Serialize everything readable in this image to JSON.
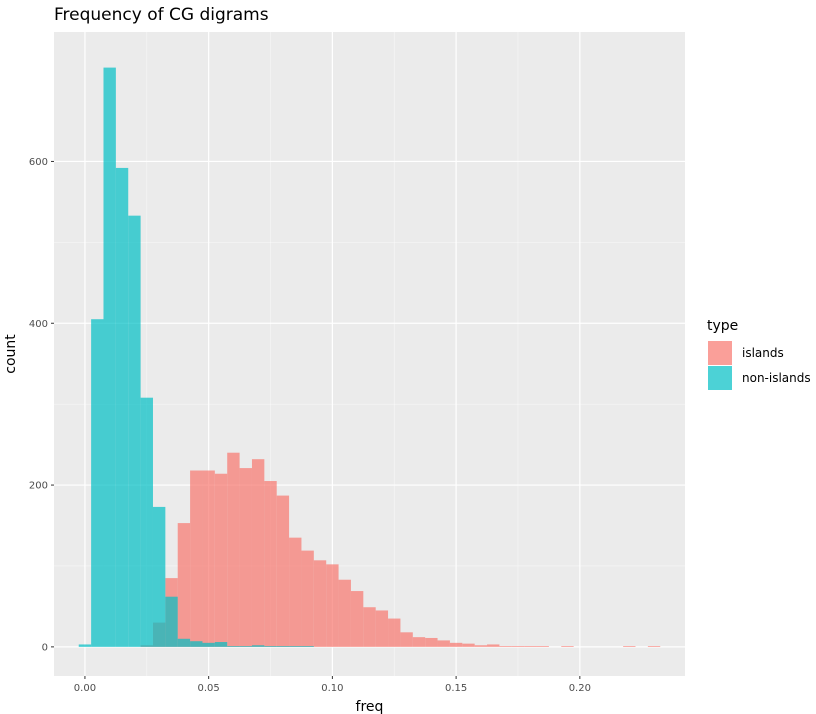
{
  "chart_data": {
    "type": "bar",
    "subtype": "overlapping-histogram",
    "title": "Frequency of CG digrams",
    "xlabel": "freq",
    "ylabel": "count",
    "xlim": [
      -0.0125,
      0.2425
    ],
    "ylim": [
      -36,
      760
    ],
    "x_ticks": [
      0.0,
      0.05,
      0.1,
      0.15,
      0.2
    ],
    "x_tick_labels": [
      "0.00",
      "0.05",
      "0.10",
      "0.15",
      "0.20"
    ],
    "y_ticks": [
      0,
      200,
      400,
      600
    ],
    "y_tick_labels": [
      "0",
      "200",
      "400",
      "600"
    ],
    "grid": true,
    "bin_width": 0.005,
    "legend": {
      "title": "type",
      "position": "right"
    },
    "colors": {
      "panel": "#ebebeb",
      "grid_major": "#ffffff",
      "islands": "#f8766d",
      "non_islands": "#00bfc4"
    },
    "series": [
      {
        "name": "islands",
        "color": "#f8766d",
        "bin_centers": [
          0.025,
          0.03,
          0.035,
          0.04,
          0.045,
          0.05,
          0.055,
          0.06,
          0.065,
          0.07,
          0.075,
          0.08,
          0.085,
          0.09,
          0.095,
          0.1,
          0.105,
          0.11,
          0.115,
          0.12,
          0.125,
          0.13,
          0.135,
          0.14,
          0.145,
          0.15,
          0.155,
          0.16,
          0.165,
          0.17,
          0.175,
          0.18,
          0.185,
          0.195,
          0.22,
          0.23
        ],
        "values": [
          2,
          30,
          85,
          153,
          218,
          218,
          214,
          240,
          221,
          232,
          205,
          187,
          135,
          119,
          107,
          102,
          83,
          69,
          49,
          45,
          35,
          18,
          12,
          11,
          8,
          5,
          4,
          2,
          3,
          1,
          1,
          1,
          1,
          1,
          1,
          1
        ]
      },
      {
        "name": "non-islands",
        "color": "#00bfc4",
        "bin_centers": [
          0.0,
          0.005,
          0.01,
          0.015,
          0.02,
          0.025,
          0.03,
          0.035,
          0.04,
          0.045,
          0.05,
          0.055,
          0.06,
          0.065,
          0.07,
          0.075,
          0.08,
          0.085,
          0.09
        ],
        "values": [
          3,
          405,
          716,
          592,
          533,
          308,
          173,
          62,
          10,
          7,
          5,
          6,
          1,
          1,
          2,
          1,
          1,
          1,
          1
        ]
      }
    ]
  }
}
